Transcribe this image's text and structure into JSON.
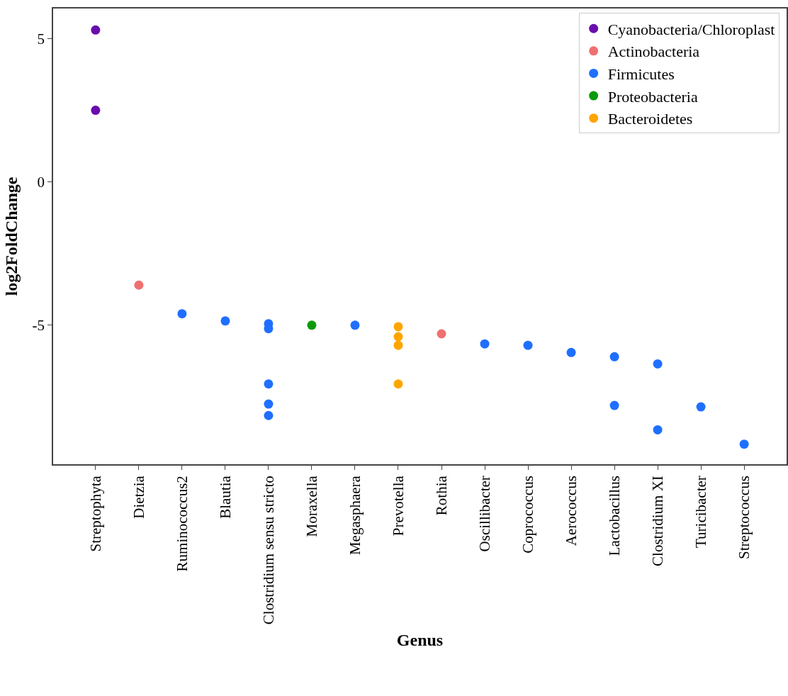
{
  "chart_data": {
    "type": "scatter",
    "xlabel": "Genus",
    "ylabel": "log2FoldChange",
    "categories": [
      "Streptophyta",
      "Dietzia",
      "Ruminococcus2",
      "Blautia",
      "Clostridium sensu stricto",
      "Moraxella",
      "Megasphaera",
      "Prevotella",
      "Rothia",
      "Oscillibacter",
      "Coprococcus",
      "Aerococcus",
      "Lactobacillus",
      "Clostridium XI",
      "Turicibacter",
      "Streptococcus"
    ],
    "series": [
      {
        "name": "Cyanobacteria/Chloroplast",
        "color": "#6a0dad",
        "x": [
          "Streptophyta",
          "Streptophyta"
        ],
        "values": [
          5.3,
          2.5
        ]
      },
      {
        "name": "Actinobacteria",
        "color": "#f07070",
        "x": [
          "Dietzia",
          "Rothia"
        ],
        "values": [
          -3.6,
          -5.3
        ]
      },
      {
        "name": "Firmicutes",
        "color": "#1f6fff",
        "x": [
          "Ruminococcus2",
          "Blautia",
          "Clostridium sensu stricto",
          "Clostridium sensu stricto",
          "Clostridium sensu stricto",
          "Clostridium sensu stricto",
          "Clostridium sensu stricto",
          "Megasphaera",
          "Oscillibacter",
          "Coprococcus",
          "Aerococcus",
          "Lactobacillus",
          "Lactobacillus",
          "Clostridium XI",
          "Clostridium XI",
          "Turicibacter",
          "Streptococcus"
        ],
        "values": [
          -4.6,
          -4.85,
          -4.95,
          -5.12,
          -7.05,
          -7.75,
          -8.15,
          -5.0,
          -5.65,
          -5.7,
          -5.95,
          -6.1,
          -7.8,
          -6.35,
          -8.65,
          -7.85,
          -9.15
        ]
      },
      {
        "name": "Proteobacteria",
        "color": "#0a9a0a",
        "x": [
          "Moraxella"
        ],
        "values": [
          -5.0
        ]
      },
      {
        "name": "Bacteroidetes",
        "color": "#ffa500",
        "x": [
          "Prevotella",
          "Prevotella",
          "Prevotella",
          "Prevotella"
        ],
        "values": [
          -5.05,
          -5.4,
          -5.7,
          -7.05
        ]
      }
    ],
    "ylim": [
      -9.85,
      6.05
    ],
    "yticks": [
      -5,
      0,
      5
    ],
    "grid": false,
    "legend": "top right",
    "marker": "circle"
  }
}
